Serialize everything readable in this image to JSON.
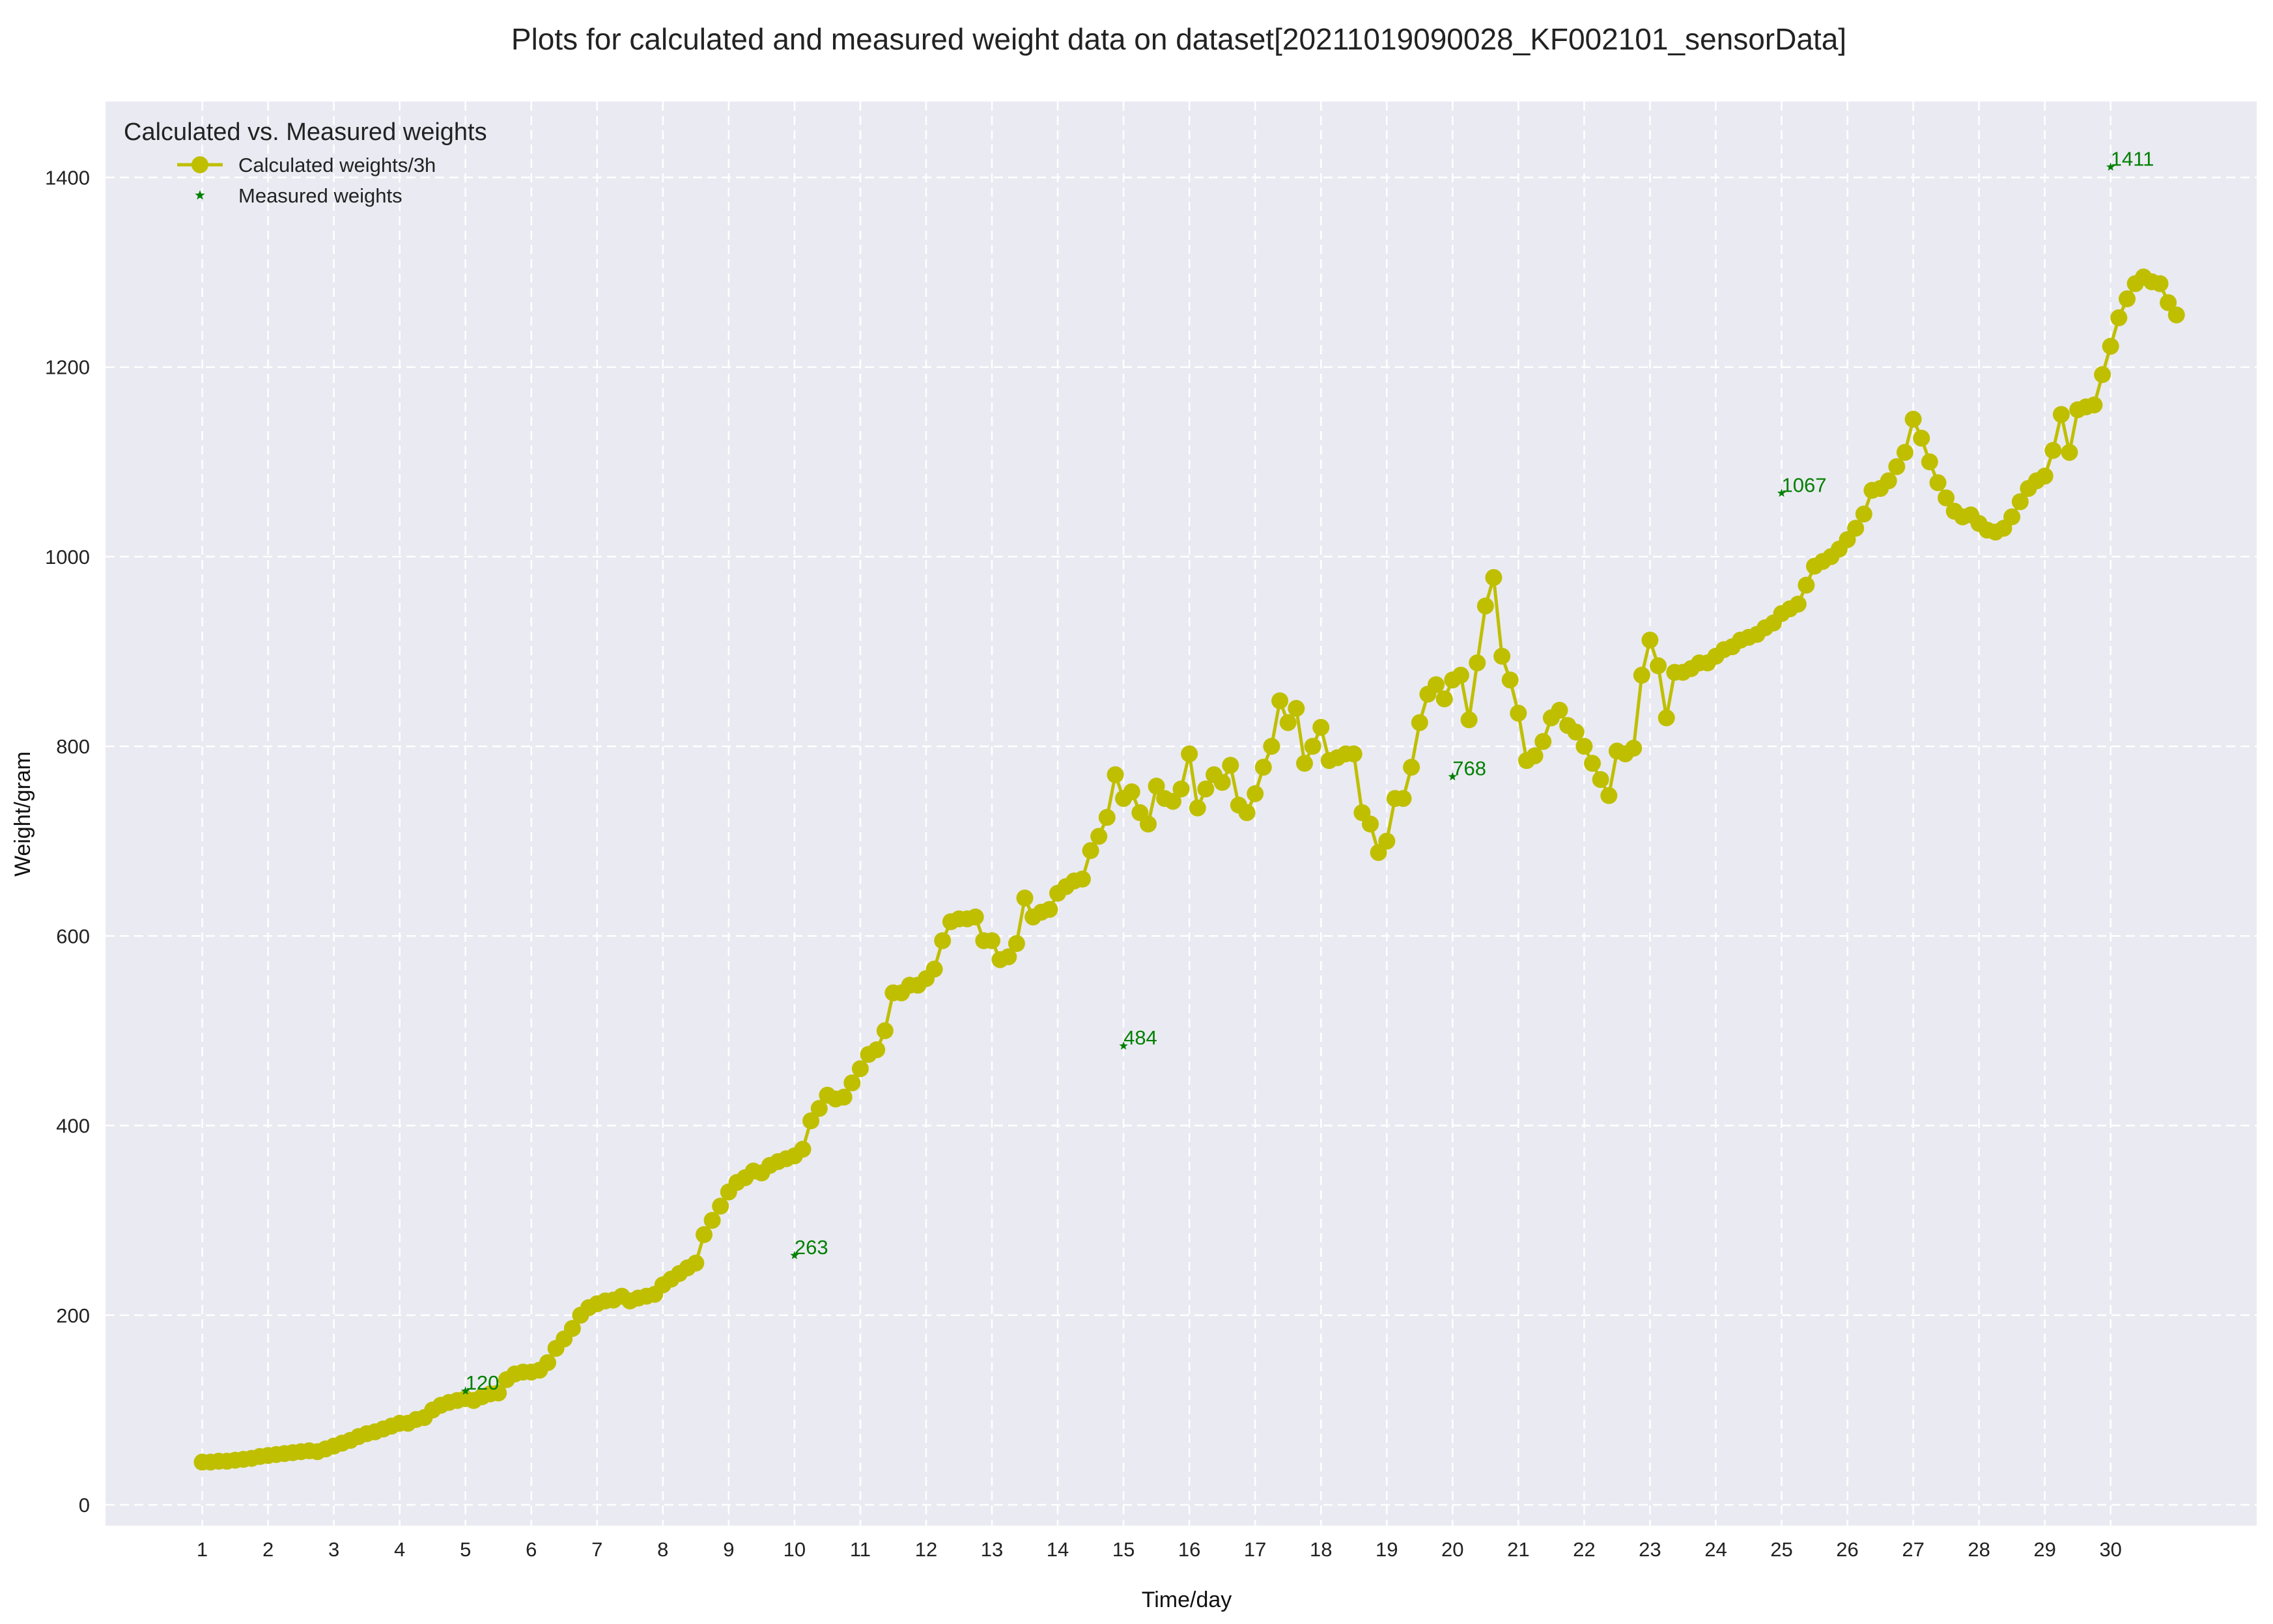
{
  "chart_data": {
    "type": "line",
    "title": "Plots for calculated and measured weight data on dataset[20211019090028_KF002101_sensorData]",
    "xlabel": "Time/day",
    "ylabel": "Weight/gram",
    "xlim": [
      -0.47,
      32.22
    ],
    "ylim": [
      -22,
      1480
    ],
    "x_ticks": [
      1,
      2,
      3,
      4,
      5,
      6,
      7,
      8,
      9,
      10,
      11,
      12,
      13,
      14,
      15,
      16,
      17,
      18,
      19,
      20,
      21,
      22,
      23,
      24,
      25,
      26,
      27,
      28,
      29,
      30
    ],
    "y_ticks": [
      0,
      200,
      400,
      600,
      800,
      1000,
      1200,
      1400
    ],
    "grid": true,
    "legend": {
      "title": "Calculated vs. Measured weights",
      "placement": "top-left",
      "entries": [
        "Calculated weights/3h",
        "Measured weights"
      ]
    },
    "colors": {
      "calculated": "#bfbf00",
      "measured": "#008000",
      "background": "#eaeaf2",
      "grid": "#ffffff"
    },
    "series": [
      {
        "name": "Calculated weights/3h",
        "marker": "circle",
        "x_start": 1.0,
        "x_step": 0.125,
        "values": [
          45,
          45,
          46,
          46,
          47,
          48,
          49,
          51,
          52,
          53,
          54,
          55,
          56,
          57,
          56,
          59,
          62,
          65,
          68,
          72,
          75,
          77,
          80,
          83,
          86,
          86,
          90,
          92,
          100,
          105,
          108,
          110,
          112,
          110,
          114,
          117,
          118,
          132,
          138,
          140,
          140,
          142,
          150,
          165,
          175,
          186,
          200,
          208,
          212,
          215,
          216,
          220,
          215,
          218,
          220,
          222,
          232,
          238,
          244,
          250,
          255,
          285,
          300,
          315,
          330,
          340,
          345,
          352,
          350,
          358,
          362,
          365,
          368,
          375,
          405,
          418,
          432,
          428,
          430,
          445,
          460,
          475,
          480,
          500,
          540,
          540,
          548,
          548,
          555,
          565,
          595,
          615,
          618,
          618,
          620,
          595,
          595,
          575,
          578,
          592,
          640,
          620,
          625,
          628,
          645,
          652,
          658,
          660,
          690,
          705,
          725,
          770,
          745,
          752,
          730,
          718,
          758,
          745,
          742,
          755,
          792,
          735,
          755,
          770,
          762,
          780,
          738,
          730,
          750,
          778,
          800,
          848,
          825,
          840,
          782,
          800,
          820,
          785,
          788,
          792,
          792,
          730,
          718,
          688,
          700,
          745,
          745,
          778,
          825,
          855,
          865,
          850,
          870,
          875,
          828,
          888,
          948,
          978,
          895,
          870,
          835,
          785,
          790,
          805,
          830,
          838,
          822,
          815,
          800,
          782,
          765,
          748,
          795,
          792,
          798,
          875,
          912,
          885,
          830,
          878,
          878,
          882,
          888,
          888,
          895,
          902,
          905,
          912,
          915,
          918,
          925,
          930,
          940,
          945,
          950,
          970,
          990,
          995,
          1000,
          1008,
          1018,
          1030,
          1045,
          1070,
          1072,
          1080,
          1095,
          1110,
          1145,
          1125,
          1100,
          1078,
          1062,
          1048,
          1042,
          1044,
          1035,
          1028,
          1026,
          1030,
          1042,
          1058,
          1072,
          1080,
          1085,
          1112,
          1150,
          1110,
          1155,
          1158,
          1160,
          1192,
          1222,
          1252,
          1272,
          1288,
          1295,
          1290,
          1288,
          1268,
          1255
        ]
      },
      {
        "name": "Measured weights",
        "marker": "star",
        "x": [
          5,
          10,
          15,
          20,
          25,
          30
        ],
        "values": [
          120,
          263,
          484,
          768,
          1067,
          1411
        ],
        "labels": [
          "120",
          "263",
          "484",
          "768",
          "1067",
          "1411"
        ]
      }
    ]
  }
}
